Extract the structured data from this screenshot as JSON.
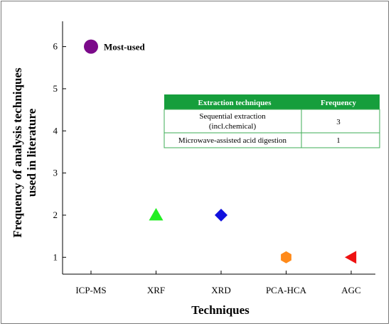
{
  "chart_data": {
    "type": "scatter",
    "categories": [
      "ICP-MS",
      "XRF",
      "XRD",
      "PCA-HCA",
      "AGC"
    ],
    "points": [
      {
        "category": "ICP-MS",
        "value": 6,
        "marker": "circle",
        "color": "#7b0a8a"
      },
      {
        "category": "XRF",
        "value": 2,
        "marker": "triangle-up",
        "color": "#22ee22"
      },
      {
        "category": "XRD",
        "value": 2,
        "marker": "diamond",
        "color": "#1111dd"
      },
      {
        "category": "PCA-HCA",
        "value": 1,
        "marker": "hexagon",
        "color": "#ff8a1a"
      },
      {
        "category": "AGC",
        "value": 1,
        "marker": "triangle-left",
        "color": "#ee1111"
      }
    ],
    "yticks": [
      1,
      2,
      3,
      4,
      5,
      6
    ],
    "ylim": [
      0.6,
      6.6
    ],
    "xlabel": "Techniques",
    "ylabel_lines": [
      "Frequency of analysis techniques",
      "used in literature"
    ],
    "annotation": "Most-used",
    "grid": false
  },
  "table": {
    "header_color": "#169e3c",
    "border_color": "#3dae55",
    "headers": [
      "Extraction techniques",
      "Frequency"
    ],
    "rows": [
      {
        "technique_lines": [
          "Sequential extraction",
          "(incl.chemical)"
        ],
        "frequency": "3"
      },
      {
        "technique_lines": [
          "Microwave-assisted acid digestion"
        ],
        "frequency": "1"
      }
    ]
  }
}
